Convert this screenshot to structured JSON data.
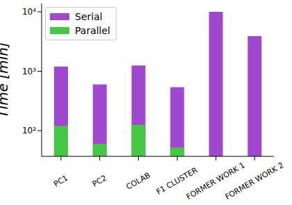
{
  "chart_data": {
    "type": "bar",
    "categories": [
      "PC1",
      "PC2",
      "COLAB",
      "F1 CLUSTER",
      "FORMER WORK 1",
      "FORMER WORK 2"
    ],
    "series": [
      {
        "name": "Serial",
        "color": "#a048d0",
        "values": [
          1200,
          600,
          1250,
          540,
          10000,
          3900
        ]
      },
      {
        "name": "Parallel",
        "color": "#46c846",
        "values": [
          120,
          60,
          125,
          52,
          null,
          null
        ]
      }
    ],
    "y_label": "Time [min]",
    "log": "y",
    "ylim": [
      37,
      13800
    ],
    "yticks": [
      {
        "value": 100,
        "label": "10²"
      },
      {
        "value": 1000,
        "label": "10³"
      },
      {
        "value": 10000,
        "label": "10⁴"
      }
    ],
    "legend": "upper left",
    "grid": false
  }
}
